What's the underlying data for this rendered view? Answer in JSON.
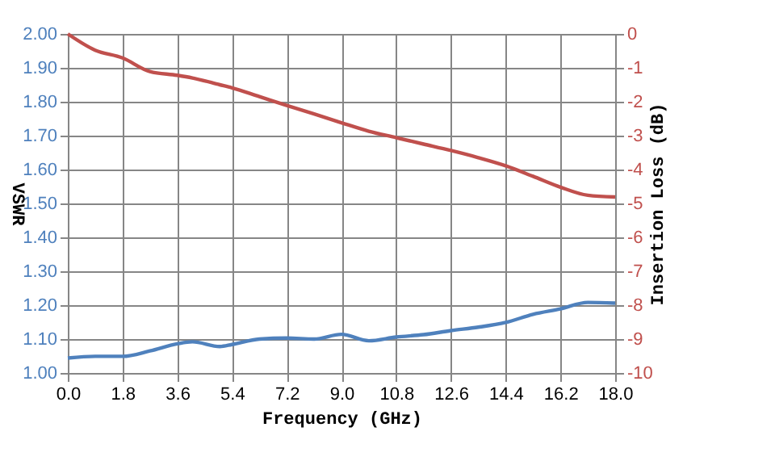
{
  "chart_data": {
    "type": "line",
    "xlabel": "Frequency (GHz)",
    "ylabel": "VSWR",
    "y2label": "Insertion Loss (dB)",
    "x": [
      0,
      0.9,
      1.8,
      2.7,
      3.6,
      4.1,
      5.0,
      5.4,
      6.3,
      7.2,
      8.1,
      9.0,
      9.9,
      10.8,
      11.7,
      12.6,
      13.5,
      14.4,
      15.3,
      16.2,
      17.1,
      18.0
    ],
    "series": [
      {
        "color": "#4f81bd",
        "values": [
          1.044,
          1.049,
          1.049,
          1.065,
          1.086,
          1.092,
          1.078,
          1.084,
          1.1,
          1.103,
          1.1,
          1.114,
          1.095,
          1.106,
          1.113,
          1.125,
          1.135,
          1.149,
          1.173,
          1.189,
          1.208,
          1.206
        ]
      },
      {
        "color": "#c0504d",
        "axis": "y2",
        "values": [
          0,
          -0.48,
          -0.71,
          -1.11,
          -1.22,
          -1.3,
          -1.5,
          -1.59,
          -1.85,
          -2.11,
          -2.36,
          -2.62,
          -2.87,
          -3.06,
          -3.25,
          -3.44,
          -3.65,
          -3.89,
          -4.2,
          -4.52,
          -4.76,
          -4.81
        ]
      }
    ],
    "xlim": [
      0,
      18.0
    ],
    "xticks": [
      {
        "value": 0,
        "label": "0.0"
      },
      1.8,
      3.6,
      5.4,
      7.2,
      {
        "value": 9.0,
        "label": "9.0"
      },
      10.8,
      12.6,
      14.4,
      16.2,
      {
        "value": 18.0,
        "label": "18.0"
      }
    ],
    "ylim": [
      1.0,
      2.0
    ],
    "yticks": [
      {
        "value": 1.0,
        "label": "1.00"
      },
      {
        "value": 1.1,
        "label": "1.10"
      },
      {
        "value": 1.2,
        "label": "1.20"
      },
      {
        "value": 1.3,
        "label": "1.30"
      },
      {
        "value": 1.4,
        "label": "1.40"
      },
      {
        "value": 1.5,
        "label": "1.50"
      },
      {
        "value": 1.6,
        "label": "1.60"
      },
      {
        "value": 1.7,
        "label": "1.70"
      },
      {
        "value": 1.8,
        "label": "1.80"
      },
      {
        "value": 1.9,
        "label": "1.90"
      },
      {
        "value": 2.0,
        "label": "2.00"
      }
    ],
    "y2lim": [
      -10,
      0
    ],
    "y2ticks": [
      -10,
      -9,
      -8,
      -7,
      -6,
      -5,
      -4,
      -3,
      -2,
      -1,
      0
    ],
    "grid": true,
    "marker": "none",
    "line_style": "solid"
  }
}
